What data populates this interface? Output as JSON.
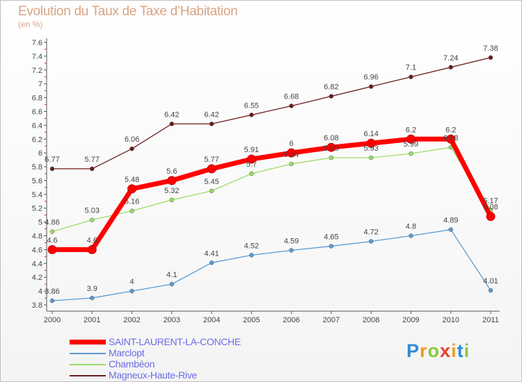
{
  "header": {
    "title": "Evolution du Taux de Taxe d’Habitation",
    "unit": "(en %)"
  },
  "chart_data": {
    "type": "line",
    "title": "Evolution du Taux de Taxe d’Habitation",
    "ylabel": "(en %)",
    "xlabel": "",
    "categories": [
      "2000",
      "2001",
      "2002",
      "2003",
      "2004",
      "2005",
      "2006",
      "2007",
      "2008",
      "2009",
      "2010",
      "2011"
    ],
    "ylim": [
      3.8,
      7.6
    ],
    "yticks": [
      "3.8",
      "4",
      "4.2",
      "4.4",
      "4.6",
      "4.8",
      "5",
      "5.2",
      "5.4",
      "5.6",
      "5.8",
      "6",
      "6.2",
      "6.4",
      "6.6",
      "6.8",
      "7",
      "7.2",
      "7.4",
      "7.6"
    ],
    "grid": false,
    "series": [
      {
        "name": "Magneux-Haute-Rive",
        "color": "#6b1a1a",
        "values": [
          5.77,
          5.77,
          6.06,
          6.42,
          6.42,
          6.55,
          6.68,
          6.82,
          6.96,
          7.1,
          7.24,
          7.38
        ],
        "labels": [
          "5.77",
          "5.77",
          "6.06",
          "6.42",
          "6.42",
          "6.55",
          "6.68",
          "6.82",
          "6.96",
          "7.1",
          "7.24",
          "7.38"
        ]
      },
      {
        "name": "Chambéon",
        "color": "#99dd66",
        "values": [
          4.86,
          5.03,
          5.16,
          5.32,
          5.45,
          5.7,
          5.84,
          5.93,
          5.93,
          5.99,
          6.08,
          5.17
        ],
        "labels": [
          "4.86",
          "5.03",
          "5.16",
          "5.32",
          "5.45",
          "5.7",
          "5.84",
          "5.93",
          "5.93",
          "5.99",
          "6.08",
          "5.17"
        ]
      },
      {
        "name": "Marclopt",
        "color": "#5b9bd5",
        "values": [
          3.86,
          3.9,
          4,
          4.1,
          4.41,
          4.52,
          4.59,
          4.65,
          4.72,
          4.8,
          4.89,
          4.01
        ],
        "labels": [
          "3.86",
          "3.9",
          "4",
          "4.1",
          "4.41",
          "4.52",
          "4.59",
          "4.65",
          "4.72",
          "4.8",
          "4.89",
          "4.01"
        ]
      },
      {
        "name": "SAINT-LAURENT-LA-CONCHE",
        "color": "#ff0000",
        "values": [
          4.6,
          4.6,
          5.48,
          5.6,
          5.77,
          5.91,
          6,
          6.08,
          6.14,
          6.2,
          6.2,
          5.08
        ],
        "labels": [
          "4.6",
          "4.6",
          "5.48",
          "5.6",
          "5.77",
          "5.91",
          "6",
          "6.08",
          "6.14",
          "6.2",
          "6.2",
          "5.08"
        ]
      }
    ],
    "legend": [
      "SAINT-LAURENT-LA-CONCHE",
      "Marclopt",
      "Chambéon",
      "Magneux-Haute-Rive"
    ],
    "legend_position": "bottom-left"
  },
  "logo": {
    "letters": [
      "P",
      "r",
      "o",
      "x",
      "i",
      "t",
      "i"
    ],
    "colors": [
      "#2e8bd6",
      "#f29a1f",
      "#8cc63f",
      "#e8402a",
      "#f29a1f",
      "#2e8bd6",
      "#8cc63f"
    ]
  }
}
